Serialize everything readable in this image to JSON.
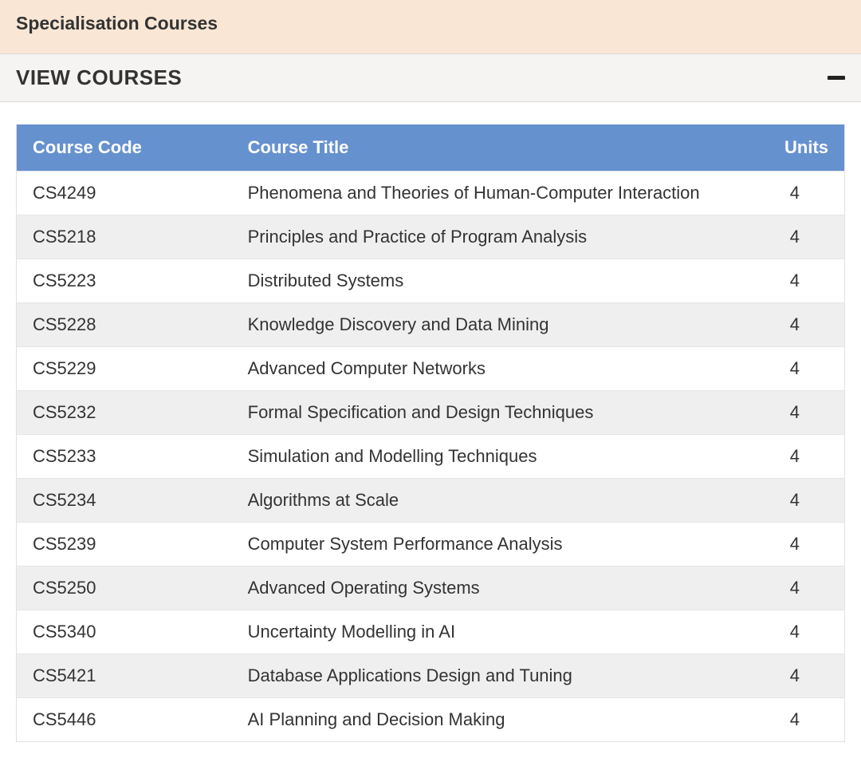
{
  "header": {
    "title": "Specialisation Courses"
  },
  "accordion": {
    "label": "VIEW COURSES",
    "expanded": true
  },
  "table": {
    "columns": {
      "code": "Course Code",
      "title": "Course Title",
      "units": "Units"
    },
    "header_bg": "#6691cf",
    "header_fg": "#ffffff",
    "row_odd_bg": "#ffffff",
    "row_even_bg": "#efefef",
    "rows": [
      {
        "code": "CS4249",
        "title": "Phenomena and Theories of Human-Computer Interaction",
        "units": "4"
      },
      {
        "code": "CS5218",
        "title": "Principles and Practice of Program Analysis",
        "units": "4"
      },
      {
        "code": "CS5223",
        "title": "Distributed Systems",
        "units": "4"
      },
      {
        "code": "CS5228",
        "title": "Knowledge Discovery and Data Mining",
        "units": "4"
      },
      {
        "code": "CS5229",
        "title": "Advanced Computer Networks",
        "units": "4"
      },
      {
        "code": "CS5232",
        "title": "Formal Specification and Design Techniques",
        "units": "4"
      },
      {
        "code": "CS5233",
        "title": "Simulation and Modelling Techniques",
        "units": "4"
      },
      {
        "code": "CS5234",
        "title": "Algorithms at Scale",
        "units": "4"
      },
      {
        "code": "CS5239",
        "title": "Computer System Performance Analysis",
        "units": "4"
      },
      {
        "code": "CS5250",
        "title": "Advanced Operating Systems",
        "units": "4"
      },
      {
        "code": "CS5340",
        "title": "Uncertainty Modelling in AI",
        "units": "4"
      },
      {
        "code": "CS5421",
        "title": "Database Applications Design and Tuning",
        "units": "4"
      },
      {
        "code": "CS5446",
        "title": "AI Planning and Decision Making",
        "units": "4"
      }
    ]
  }
}
